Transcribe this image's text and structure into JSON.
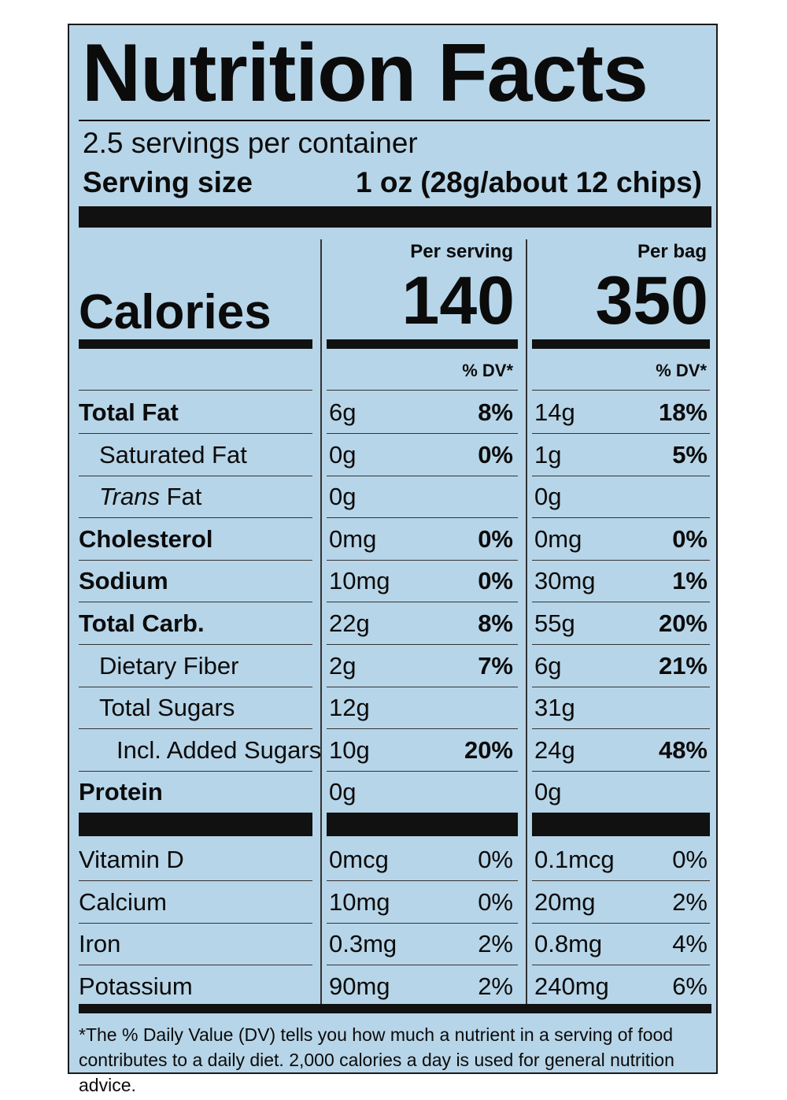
{
  "title": "Nutrition Facts",
  "servings_per_container": "2.5 servings per container",
  "serving_size_label": "Serving size",
  "serving_size_value": "1 oz (28g/about 12 chips)",
  "calories_label": "Calories",
  "columns": [
    {
      "heading": "Per serving",
      "calories": "140",
      "dv_heading": "% DV*"
    },
    {
      "heading": "Per bag",
      "calories": "350",
      "dv_heading": "% DV*"
    }
  ],
  "nutrients": [
    {
      "label": "Total Fat",
      "bold": true,
      "indent": 0,
      "serving_amt": "6g",
      "serving_dv": "8%",
      "bag_amt": "14g",
      "bag_dv": "18%"
    },
    {
      "label": "Saturated Fat",
      "bold": false,
      "indent": 1,
      "serving_amt": "0g",
      "serving_dv": "0%",
      "bag_amt": "1g",
      "bag_dv": "5%"
    },
    {
      "label_italic": "Trans",
      "label": " Fat",
      "bold": false,
      "indent": 1,
      "serving_amt": "0g",
      "serving_dv": "",
      "bag_amt": "0g",
      "bag_dv": ""
    },
    {
      "label": "Cholesterol",
      "bold": true,
      "indent": 0,
      "serving_amt": "0mg",
      "serving_dv": "0%",
      "bag_amt": "0mg",
      "bag_dv": "0%"
    },
    {
      "label": "Sodium",
      "bold": true,
      "indent": 0,
      "serving_amt": "10mg",
      "serving_dv": "0%",
      "bag_amt": "30mg",
      "bag_dv": "1%"
    },
    {
      "label": "Total Carb.",
      "bold": true,
      "indent": 0,
      "serving_amt": "22g",
      "serving_dv": "8%",
      "bag_amt": "55g",
      "bag_dv": "20%"
    },
    {
      "label": "Dietary Fiber",
      "bold": false,
      "indent": 1,
      "serving_amt": "2g",
      "serving_dv": "7%",
      "bag_amt": "6g",
      "bag_dv": "21%"
    },
    {
      "label": "Total Sugars",
      "bold": false,
      "indent": 1,
      "serving_amt": "12g",
      "serving_dv": "",
      "bag_amt": "31g",
      "bag_dv": ""
    },
    {
      "label": "Incl. Added Sugars",
      "bold": false,
      "indent": 2,
      "serving_amt": "10g",
      "serving_dv": "20%",
      "bag_amt": "24g",
      "bag_dv": "48%"
    },
    {
      "label": "Protein",
      "bold": true,
      "indent": 0,
      "serving_amt": "0g",
      "serving_dv": "",
      "bag_amt": "0g",
      "bag_dv": ""
    }
  ],
  "vitamins": [
    {
      "label": "Vitamin D",
      "serving_amt": "0mcg",
      "serving_dv": "0%",
      "bag_amt": "0.1mcg",
      "bag_dv": "0%"
    },
    {
      "label": "Calcium",
      "serving_amt": "10mg",
      "serving_dv": "0%",
      "bag_amt": "20mg",
      "bag_dv": "2%"
    },
    {
      "label": "Iron",
      "serving_amt": "0.3mg",
      "serving_dv": "2%",
      "bag_amt": "0.8mg",
      "bag_dv": "4%"
    },
    {
      "label": "Potassium",
      "serving_amt": "90mg",
      "serving_dv": "2%",
      "bag_amt": "240mg",
      "bag_dv": "6%"
    }
  ],
  "footnote": "*The % Daily Value (DV) tells you how much a nutrient in a serving of food contributes to a daily diet. 2,000 calories a day is used for general nutrition advice.",
  "colors": {
    "panel_background": "#b7d5e8",
    "ink": "#0b0b0b"
  }
}
